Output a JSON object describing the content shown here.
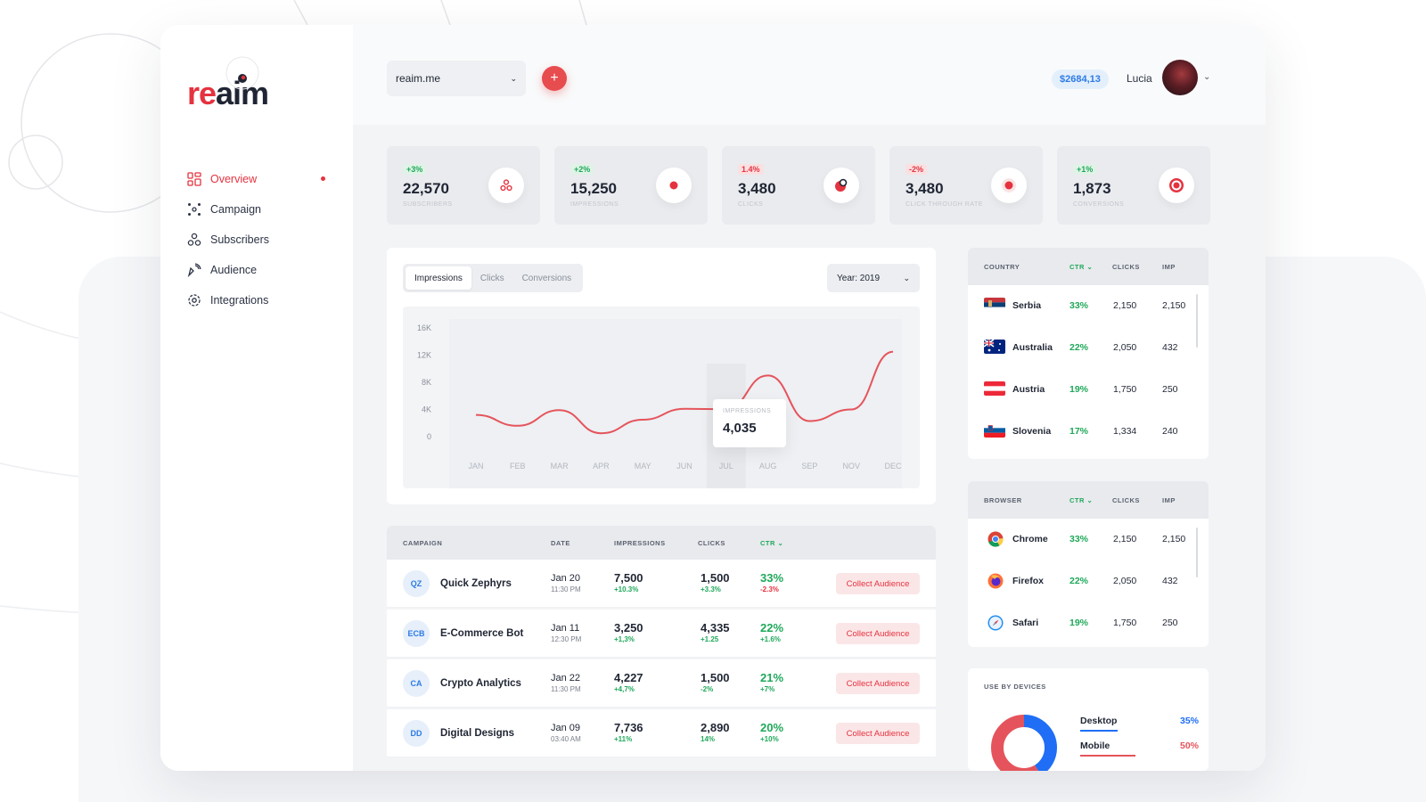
{
  "brand": {
    "logo_re": "re",
    "logo_aim": "aim",
    "accent": "#e5323f"
  },
  "nav": {
    "items": [
      {
        "label": "Overview",
        "icon": "overview-icon",
        "active": true
      },
      {
        "label": "Campaign",
        "icon": "campaign-icon"
      },
      {
        "label": "Subscribers",
        "icon": "subscribers-icon"
      },
      {
        "label": "Audience",
        "icon": "audience-icon"
      },
      {
        "label": "Integrations",
        "icon": "gear-icon"
      }
    ]
  },
  "topbar": {
    "site_select": "reaim.me",
    "add_label": "+",
    "balance": "$2684,13",
    "user_name": "Lucia"
  },
  "stats": [
    {
      "change": "+3%",
      "trend": "pos",
      "value": "22,570",
      "label": "SUBSCRIBERS",
      "icon": "subscribers-icon"
    },
    {
      "change": "+2%",
      "trend": "pos",
      "value": "15,250",
      "label": "IMPRESSIONS",
      "icon": "impressions-icon"
    },
    {
      "change": "1.4%",
      "trend": "neg",
      "value": "3,480",
      "label": "CLICKS",
      "icon": "clicks-icon"
    },
    {
      "change": "-2%",
      "trend": "neg",
      "value": "3,480",
      "label": "CLICK THROUGH RATE",
      "icon": "ctr-icon"
    },
    {
      "change": "+1%",
      "trend": "pos",
      "value": "1,873",
      "label": "CONVERSIONS",
      "icon": "target-icon"
    }
  ],
  "chart_tabs": [
    "Impressions",
    "Clicks",
    "Conversions"
  ],
  "year_select": "Year: 2019",
  "tooltip": {
    "label": "IMPRESSIONS",
    "value": "4,035"
  },
  "chart_data": {
    "type": "line",
    "categories": [
      "JAN",
      "FEB",
      "MAR",
      "APR",
      "MAY",
      "JUN",
      "JUL",
      "AUG",
      "SEP",
      "NOV",
      "DEC"
    ],
    "y_ticks": [
      "16K",
      "12K",
      "8K",
      "4K",
      "0"
    ],
    "ylim": [
      0,
      16000
    ],
    "series": [
      {
        "values": [
          3200,
          1600,
          3900,
          500,
          2500,
          4100,
          4035,
          9000,
          2300,
          4000,
          12500
        ],
        "color": "#e5545c"
      }
    ],
    "highlight_index": 6
  },
  "campaign_table": {
    "headers": [
      "CAMPAIGN",
      "DATE",
      "IMPRESSIONS",
      "CLICKS",
      "CTR"
    ],
    "action_label": "Collect Audience",
    "rows": [
      {
        "initials": "QZ",
        "name": "Quick Zephyrs",
        "date": "Jan 20",
        "time": "11:30 PM",
        "impressions": "7,500",
        "imp_change": "+10.3%",
        "clicks": "1,500",
        "clicks_change": "+3.3%",
        "ctr": "33%",
        "ctr_change": "-2.3%",
        "ctr_trend": "neg"
      },
      {
        "initials": "ECB",
        "name": "E-Commerce Bot",
        "date": "Jan 11",
        "time": "12:30 PM",
        "impressions": "3,250",
        "imp_change": "+1,3%",
        "clicks": "4,335",
        "clicks_change": "+1.25",
        "ctr": "22%",
        "ctr_change": "+1.6%",
        "ctr_trend": "pos"
      },
      {
        "initials": "CA",
        "name": "Crypto Analytics",
        "date": "Jan 22",
        "time": "11:30 PM",
        "impressions": "4,227",
        "imp_change": "+4,7%",
        "clicks": "1,500",
        "clicks_change": "-2%",
        "ctr": "21%",
        "ctr_change": "+7%",
        "ctr_trend": "pos"
      },
      {
        "initials": "DD",
        "name": "Digital Designs",
        "date": "Jan 09",
        "time": "03:40 AM",
        "impressions": "7,736",
        "imp_change": "+11%",
        "clicks": "2,890",
        "clicks_change": "14%",
        "ctr": "20%",
        "ctr_change": "+10%",
        "ctr_trend": "pos"
      }
    ]
  },
  "country_table": {
    "headers": [
      "COUNTRY",
      "CTR",
      "CLICKS",
      "IMP"
    ],
    "rows": [
      {
        "name": "Serbia",
        "ctr": "33%",
        "clicks": "2,150",
        "imp": "2,150"
      },
      {
        "name": "Australia",
        "ctr": "22%",
        "clicks": "2,050",
        "imp": "432"
      },
      {
        "name": "Austria",
        "ctr": "19%",
        "clicks": "1,750",
        "imp": "250"
      },
      {
        "name": "Slovenia",
        "ctr": "17%",
        "clicks": "1,334",
        "imp": "240"
      }
    ]
  },
  "browser_table": {
    "headers": [
      "BROWSER",
      "CTR",
      "CLICKS",
      "IMP"
    ],
    "rows": [
      {
        "name": "Chrome",
        "icon": "chrome-icon",
        "ctr": "33%",
        "clicks": "2,150",
        "imp": "2,150"
      },
      {
        "name": "Firefox",
        "icon": "firefox-icon",
        "ctr": "22%",
        "clicks": "2,050",
        "imp": "432"
      },
      {
        "name": "Safari",
        "icon": "safari-icon",
        "ctr": "19%",
        "clicks": "1,750",
        "imp": "250"
      }
    ]
  },
  "devices": {
    "title": "USE BY DEVICES",
    "items": [
      {
        "label": "Desktop",
        "pct": "35%",
        "value": 35,
        "color": "#1f6ef5"
      },
      {
        "label": "Mobile",
        "pct": "50%",
        "value": 50,
        "color": "#e5545c"
      }
    ]
  }
}
